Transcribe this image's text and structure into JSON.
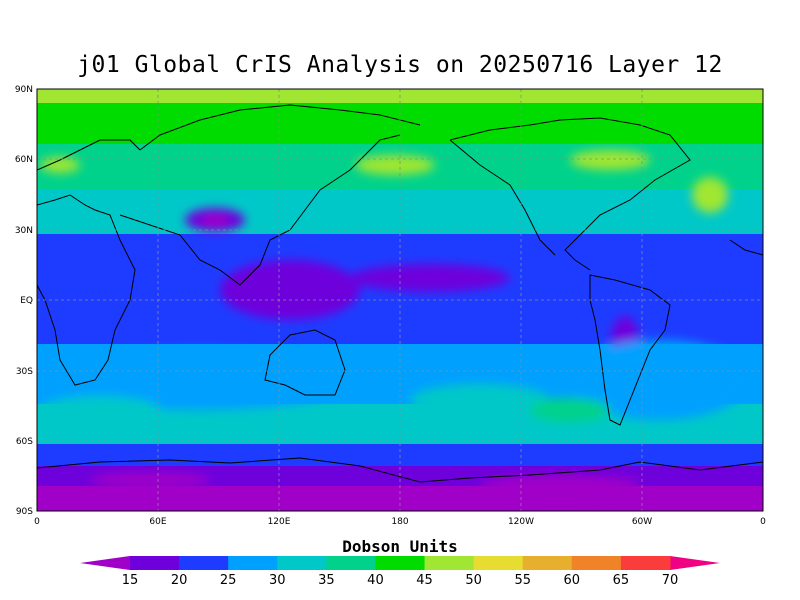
{
  "title": "j01 Global CrIS Analysis on 20250716 Layer 12",
  "map": {
    "projection": "cylindrical-equidistant",
    "lon_range": [
      0,
      360
    ],
    "lat_range": [
      -90,
      90
    ],
    "lat_ticks": [
      "90N",
      "60N",
      "30N",
      "EQ",
      "30S",
      "60S",
      "90S"
    ],
    "lon_ticks": [
      "0",
      "60E",
      "120E",
      "180",
      "120W",
      "60W",
      "0"
    ],
    "gridlines": "dashed"
  },
  "colorbar": {
    "title": "Dobson Units",
    "labels": [
      "15",
      "20",
      "25",
      "30",
      "35",
      "40",
      "45",
      "50",
      "55",
      "60",
      "65",
      "70"
    ],
    "colors": [
      "#a000c8",
      "#6e00dc",
      "#1e3cff",
      "#00a0ff",
      "#00c8c8",
      "#00d28c",
      "#00dc00",
      "#a0e632",
      "#e6dc32",
      "#e6af2d",
      "#f08228",
      "#fa3c3c",
      "#f00082"
    ]
  }
}
